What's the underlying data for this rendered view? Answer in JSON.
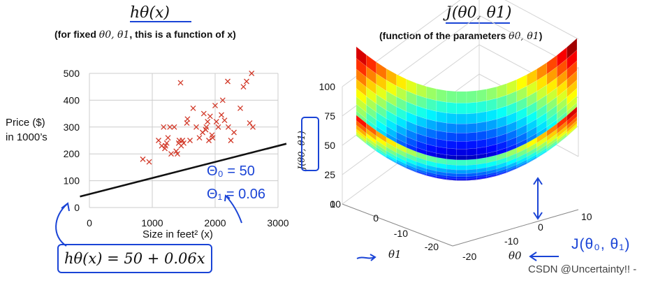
{
  "left_panel": {
    "title": "hθ(x)",
    "subtitle_prefix": "(for fixed ",
    "subtitle_params": "θ0, θ1",
    "subtitle_suffix": ", this is a function of x)",
    "ylabel_line1": "Price ($)",
    "ylabel_line2": "in 1000’s",
    "xlabel": "Size in feet² (x)",
    "hypothesis": "hθ(x) = 50 + 0.06x",
    "annotation_theta0": "Θ₀ = 50",
    "annotation_theta1": "Θ₁ = 0.06"
  },
  "right_panel": {
    "title": "J(θ0, θ1)",
    "subtitle_prefix": "(function of the parameters ",
    "subtitle_params": "θ0, θ1",
    "subtitle_suffix": ")",
    "zlabel": "J(θ0, θ1)",
    "theta1_label": "θ1",
    "theta0_label": "θ0",
    "handwritten": "J(θ₀, θ₁)"
  },
  "watermark": "CSDN @Uncertainty!! -",
  "colors": {
    "points": "#d23a2a",
    "line": "#111111",
    "annotation": "#1a44d6",
    "grid": "#cccccc"
  },
  "chart_data": [
    {
      "type": "scatter",
      "title": "hθ(x)",
      "xlabel": "Size in feet² (x)",
      "ylabel": "Price ($) in 1000’s",
      "xlim": [
        0,
        3000
      ],
      "ylim": [
        0,
        500
      ],
      "xticks": [
        "0",
        "1000",
        "2000",
        "3000"
      ],
      "yticks": [
        "0",
        "100",
        "200",
        "300",
        "400",
        "500"
      ],
      "grid": true,
      "x": [
        850,
        950,
        1100,
        1150,
        1180,
        1200,
        1210,
        1230,
        1250,
        1280,
        1300,
        1350,
        1380,
        1400,
        1420,
        1430,
        1450,
        1460,
        1480,
        1500,
        1550,
        1560,
        1600,
        1650,
        1700,
        1750,
        1800,
        1820,
        1850,
        1860,
        1880,
        1900,
        1920,
        1950,
        1960,
        2000,
        2020,
        2050,
        2100,
        2120,
        2150,
        2200,
        2210,
        2250,
        2300,
        2400,
        2450,
        2500,
        2550,
        2580,
        2600
      ],
      "y": [
        180,
        170,
        250,
        230,
        300,
        220,
        230,
        240,
        260,
        300,
        200,
        300,
        210,
        200,
        240,
        250,
        465,
        230,
        250,
        240,
        315,
        330,
        250,
        370,
        300,
        260,
        280,
        350,
        290,
        300,
        320,
        250,
        340,
        270,
        260,
        380,
        320,
        300,
        345,
        400,
        325,
        470,
        300,
        250,
        280,
        370,
        450,
        470,
        315,
        500,
        300
      ],
      "line": {
        "name": "hθ(x) = 50 + 0.06x",
        "intercept": 50,
        "slope": 0.06
      }
    },
    {
      "type": "surface",
      "title": "J(θ0, θ1)",
      "xlabel": "θ1",
      "ylabel": "θ0",
      "zlabel": "J(θ0, θ1)",
      "theta1_ticks": [
        "10",
        "0",
        "-10",
        "-20"
      ],
      "theta0_ticks": [
        "-20",
        "-10",
        "0",
        "10"
      ],
      "z_ticks": [
        "0",
        "25",
        "50",
        "75",
        "100"
      ],
      "zlim": [
        0,
        100
      ],
      "colormap": "jet"
    }
  ]
}
